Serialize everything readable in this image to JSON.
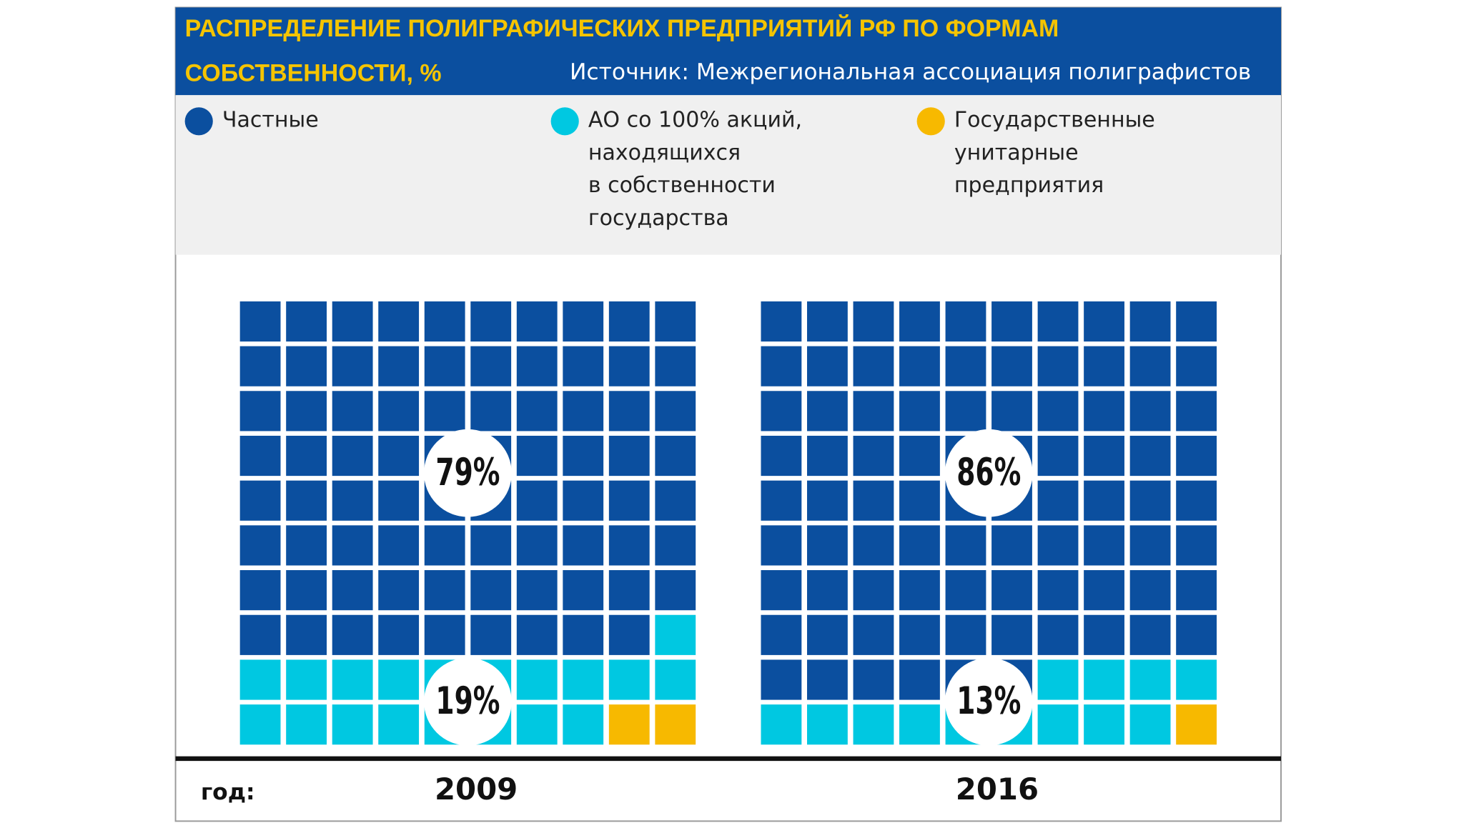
{
  "chart_data": {
    "type": "waffle",
    "title": "РАСПРЕДЕЛЕНИЕ ПОЛИГРАФИЧЕСКИХ ПРЕДПРИЯТИЙ РФ ПО ФОРМАМ СОБСТВЕННОСТИ, %",
    "subtitle": "Источник: Межрегиональная ассоциация полиграфистов",
    "x_label": "год:",
    "categories": [
      "2009",
      "2016"
    ],
    "series": [
      {
        "name": "Частные",
        "color": "#0b4f9f",
        "values": [
          79,
          86
        ],
        "value_labels": [
          "79%",
          "86%"
        ]
      },
      {
        "name": "АО со 100% акций,\nнаходящихся\nв собственности\nгосударства",
        "color": "#00c8e1",
        "values": [
          19,
          13
        ],
        "value_labels": [
          "19%",
          "13%"
        ]
      },
      {
        "name": "Государственные\nунитарные\nпредприятия",
        "color": "#f7b900",
        "values": [
          2,
          1
        ]
      }
    ]
  }
}
